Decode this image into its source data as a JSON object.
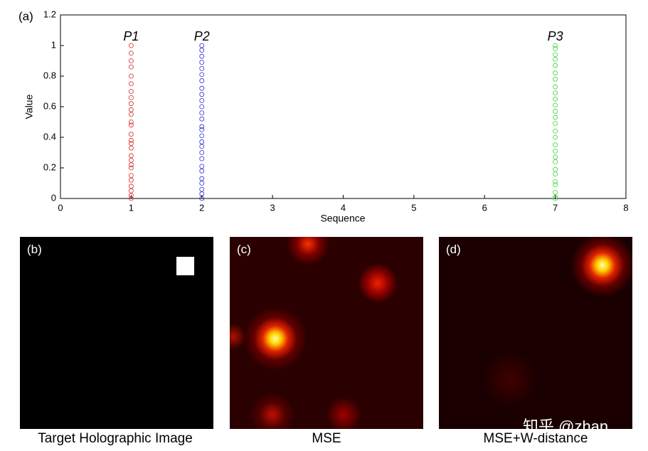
{
  "chart_data": {
    "type": "scatter",
    "xlabel": "Sequence",
    "ylabel": "Value",
    "xlim": [
      0,
      8
    ],
    "xticks": [
      0,
      1,
      2,
      3,
      4,
      5,
      6,
      7,
      8
    ],
    "ylim": [
      0,
      1.2
    ],
    "yticks": [
      0,
      0.2,
      0.4,
      0.6,
      0.8,
      1,
      1.2
    ],
    "series": [
      {
        "name": "P1",
        "color": "#d62728",
        "x": [
          1,
          1,
          1,
          1,
          1,
          1,
          1,
          1,
          1,
          1,
          1,
          1,
          1,
          1,
          1,
          1,
          1,
          1,
          1,
          1,
          1,
          1,
          1,
          1,
          1,
          1,
          1
        ],
        "values": [
          0,
          0.02,
          0.05,
          0.08,
          0.12,
          0.15,
          0.2,
          0.22,
          0.25,
          0.28,
          0.33,
          0.36,
          0.38,
          0.42,
          0.48,
          0.5,
          0.55,
          0.58,
          0.62,
          0.66,
          0.7,
          0.75,
          0.8,
          0.86,
          0.9,
          0.95,
          1
        ]
      },
      {
        "name": "P2",
        "color": "#2a2ad0",
        "x": [
          2,
          2,
          2,
          2,
          2,
          2,
          2,
          2,
          2,
          2,
          2,
          2,
          2,
          2,
          2,
          2,
          2,
          2,
          2,
          2,
          2,
          2,
          2,
          2,
          2,
          2,
          2
        ],
        "values": [
          0,
          0.03,
          0.06,
          0.1,
          0.13,
          0.18,
          0.21,
          0.26,
          0.3,
          0.34,
          0.37,
          0.41,
          0.45,
          0.47,
          0.52,
          0.56,
          0.6,
          0.64,
          0.68,
          0.72,
          0.77,
          0.81,
          0.85,
          0.89,
          0.93,
          0.97,
          1
        ]
      },
      {
        "name": "P3",
        "color": "#3ad23a",
        "x": [
          7,
          7,
          7,
          7,
          7,
          7,
          7,
          7,
          7,
          7,
          7,
          7,
          7,
          7,
          7,
          7,
          7,
          7,
          7,
          7,
          7,
          7,
          7,
          7,
          7,
          7,
          7
        ],
        "values": [
          0,
          0.01,
          0.04,
          0.09,
          0.11,
          0.16,
          0.19,
          0.24,
          0.27,
          0.31,
          0.35,
          0.4,
          0.44,
          0.49,
          0.53,
          0.57,
          0.61,
          0.65,
          0.69,
          0.73,
          0.78,
          0.82,
          0.87,
          0.91,
          0.94,
          0.98,
          1
        ]
      }
    ]
  },
  "panels": [
    {
      "label": "(a)"
    },
    {
      "label": "(b)",
      "caption": "Target Holographic Image"
    },
    {
      "label": "(c)",
      "caption": "MSE"
    },
    {
      "label": "(d)",
      "caption": "MSE+W-distance"
    }
  ],
  "watermark": "知乎 @zhan"
}
